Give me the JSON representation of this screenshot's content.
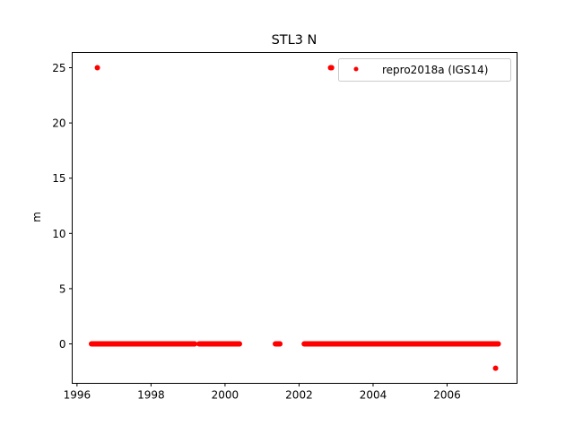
{
  "chart_data": {
    "type": "scatter",
    "title": "STL3 N",
    "xlabel": "",
    "ylabel": "m",
    "xlim": [
      1995.87,
      2007.89
    ],
    "ylim": [
      -3.57,
      26.38
    ],
    "xticks": [
      1996,
      1998,
      2000,
      2002,
      2004,
      2006
    ],
    "yticks": [
      0,
      5,
      10,
      15,
      20,
      25
    ],
    "grid": false,
    "legend_position": "top-right",
    "series": [
      {
        "name": "repro2018a (IGS14)",
        "color": "#ff0000",
        "marker": "dot",
        "dense_runs_at_constant_y": [
          {
            "x_start": 1996.39,
            "x_end": 1999.18,
            "y": 0
          },
          {
            "x_start": 1999.3,
            "x_end": 2000.39,
            "y": 0
          },
          {
            "x_start": 2001.36,
            "x_end": 2001.48,
            "y": 0
          },
          {
            "x_start": 2002.14,
            "x_end": 2007.38,
            "y": 0
          }
        ],
        "points": [
          {
            "x": 1996.55,
            "y": 25.0
          },
          {
            "x": 2002.85,
            "y": 25.0
          },
          {
            "x": 2002.88,
            "y": 25.0
          },
          {
            "x": 2007.31,
            "y": -2.2
          }
        ]
      }
    ]
  }
}
